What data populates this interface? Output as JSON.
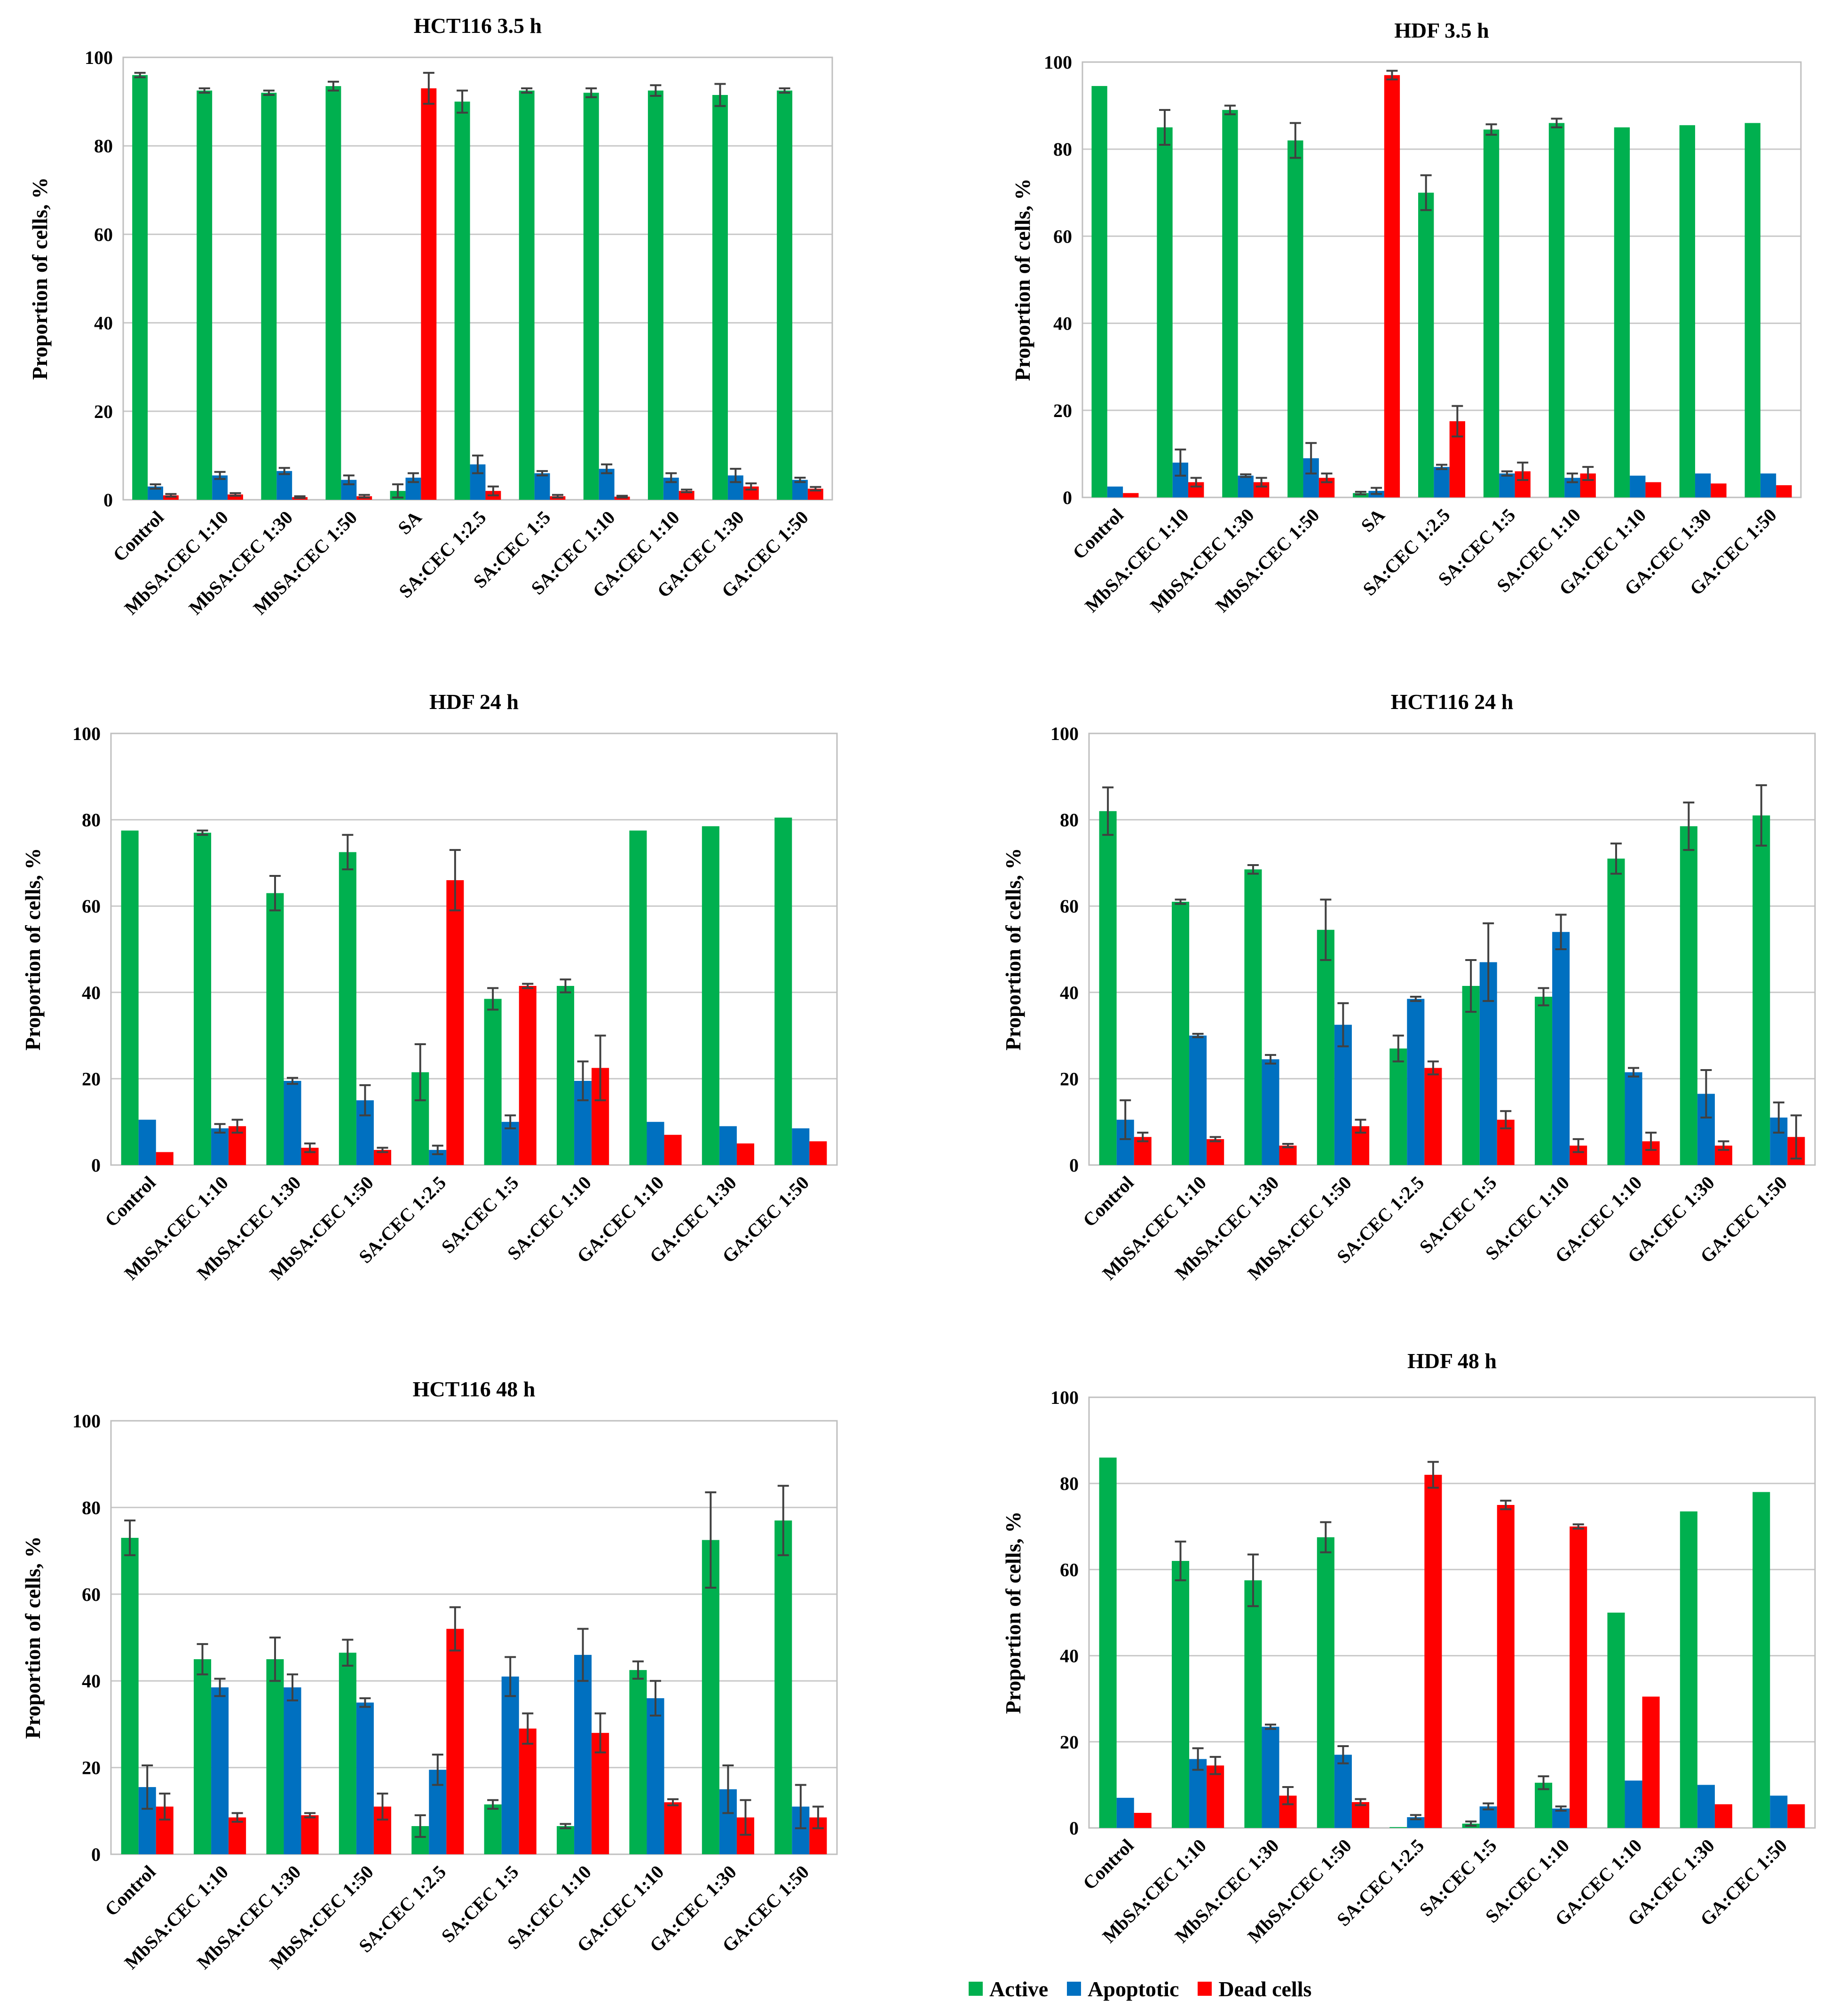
{
  "figure": {
    "ylabel": "Proportion of cells, %",
    "yticks": [
      0,
      20,
      40,
      60,
      80,
      100
    ]
  },
  "series_colors": {
    "active": "#00b04f",
    "apoptotic": "#0070c0",
    "dead": "#ff0000"
  },
  "legend": {
    "active": "Active",
    "apoptotic": "Apoptotic",
    "dead": "Dead cells"
  },
  "chart_data": [
    {
      "id": "hct116_3_5h",
      "type": "bar",
      "title": "HCT116  3.5 h",
      "ylabel": "Proportion of cells, %",
      "ylim": [
        0,
        100
      ],
      "categories": [
        "Control",
        "MbSA:CEC 1:10",
        "MbSA:CEC 1:30",
        "MbSA:CEC 1:50",
        "SA",
        "SA:CEC 1:2.5",
        "SA:CEC 1:5",
        "SA:CEC 1:10",
        "GA:CEC 1:10",
        "GA:CEC 1:30",
        "GA:CEC 1:50"
      ],
      "series": [
        {
          "name": "Active",
          "values": [
            96,
            92.5,
            92,
            93.5,
            2,
            90,
            92.5,
            92,
            92.5,
            91.5,
            92.5
          ],
          "errors": [
            0.5,
            0.5,
            0.5,
            1,
            1.5,
            2.5,
            0.5,
            1,
            1.2,
            2.5,
            0.5
          ]
        },
        {
          "name": "Apoptotic",
          "values": [
            3,
            5.5,
            6.5,
            4.5,
            5,
            8,
            6,
            7,
            5,
            5.5,
            4.5
          ],
          "errors": [
            0.5,
            0.8,
            0.7,
            1,
            1,
            2,
            0.5,
            1,
            1,
            1.5,
            0.5
          ]
        },
        {
          "name": "Dead cells",
          "values": [
            1,
            1.2,
            0.6,
            0.8,
            93,
            2,
            0.8,
            0.7,
            2,
            3,
            2.5
          ],
          "errors": [
            0.3,
            0.3,
            0.2,
            0.3,
            3.5,
            1,
            0.3,
            0.2,
            0.3,
            0.7,
            0.4
          ]
        }
      ]
    },
    {
      "id": "hdf_3_5h",
      "type": "bar",
      "title": "HDF  3.5 h",
      "ylabel": "Proportion of cells, %",
      "ylim": [
        0,
        100
      ],
      "categories": [
        "Control",
        "MbSA:CEC 1:10",
        "MbSA:CEC 1:30",
        "MbSA:CEC 1:50",
        "SA",
        "SA:CEC 1:2.5",
        "SA:CEC 1:5",
        "SA:CEC 1:10",
        "GA:CEC 1:10",
        "GA:CEC 1:30",
        "GA:CEC 1:50"
      ],
      "series": [
        {
          "name": "Active",
          "values": [
            94.5,
            85,
            89,
            82,
            1,
            70,
            84.5,
            86,
            85,
            85.5,
            86
          ],
          "errors": [
            0,
            4,
            1,
            4,
            0.3,
            4,
            1.2,
            1,
            0,
            0,
            0
          ]
        },
        {
          "name": "Apoptotic",
          "values": [
            2.5,
            8,
            5,
            9,
            1.5,
            7,
            5.5,
            4.5,
            5,
            5.5,
            5.5
          ],
          "errors": [
            0,
            3,
            0.3,
            3.5,
            0.7,
            0.5,
            0.5,
            1,
            0,
            0,
            0
          ]
        },
        {
          "name": "Dead cells",
          "values": [
            1,
            3.5,
            3.5,
            4.5,
            97,
            17.5,
            6,
            5.5,
            3.5,
            3.2,
            2.8
          ],
          "errors": [
            0,
            1,
            1,
            1,
            1,
            3.5,
            2,
            1.5,
            0,
            0,
            0
          ]
        }
      ]
    },
    {
      "id": "hdf_24h",
      "type": "bar",
      "title": "HDF  24 h",
      "ylabel": "Proportion of cells, %",
      "ylim": [
        0,
        100
      ],
      "categories": [
        "Control",
        "MbSA:CEC 1:10",
        "MbSA:CEC 1:30",
        "MbSA:CEC 1:50",
        "SA:CEC 1:2.5",
        "SA:CEC 1:5",
        "SA:CEC 1:10",
        "GA:CEC 1:10",
        "GA:CEC 1:30",
        "GA:CEC 1:50"
      ],
      "series": [
        {
          "name": "Active",
          "values": [
            77.5,
            77,
            63,
            72.5,
            21.5,
            38.5,
            41.5,
            77.5,
            78.5,
            80.5
          ],
          "errors": [
            0,
            0.5,
            4,
            4,
            6.5,
            2.5,
            1.5,
            0,
            0,
            0
          ]
        },
        {
          "name": "Apoptotic",
          "values": [
            10.5,
            8.5,
            19.5,
            15,
            3.5,
            10,
            19.5,
            10,
            9,
            8.5
          ],
          "errors": [
            0,
            1,
            0.7,
            3.5,
            1,
            1.5,
            4.5,
            0,
            0,
            0
          ]
        },
        {
          "name": "Dead cells",
          "values": [
            3,
            9,
            4,
            3.5,
            66,
            41.5,
            22.5,
            7,
            5,
            5.5
          ],
          "errors": [
            0,
            1.5,
            1,
            0.5,
            7,
            0.5,
            7.5,
            0,
            0,
            0
          ]
        }
      ]
    },
    {
      "id": "hct116_24h",
      "type": "bar",
      "title": "HCT116  24 h",
      "ylabel": "Proportion of cells, %",
      "ylim": [
        0,
        100
      ],
      "categories": [
        "Control",
        "MbSA:CEC 1:10",
        "MbSA:CEC 1:30",
        "MbSA:CEC 1:50",
        "SA:CEC 1:2.5",
        "SA:CEC 1:5",
        "SA:CEC 1:10",
        "GA:CEC 1:10",
        "GA:CEC 1:30",
        "GA:CEC 1:50"
      ],
      "series": [
        {
          "name": "Active",
          "values": [
            82,
            61,
            68.5,
            54.5,
            27,
            41.5,
            39,
            71,
            78.5,
            81
          ],
          "errors": [
            5.5,
            0.5,
            1,
            7,
            3,
            6,
            2,
            3.5,
            5.5,
            7
          ]
        },
        {
          "name": "Apoptotic",
          "values": [
            10.5,
            30,
            24.5,
            32.5,
            38.5,
            47,
            54,
            21.5,
            16.5,
            11
          ],
          "errors": [
            4.5,
            0.4,
            1,
            5,
            0.5,
            9,
            4,
            1,
            5.5,
            3.5
          ]
        },
        {
          "name": "Dead cells",
          "values": [
            6.5,
            6,
            4.5,
            9,
            22.5,
            10.5,
            4.5,
            5.5,
            4.5,
            6.5
          ],
          "errors": [
            1,
            0.5,
            0.4,
            1.5,
            1.5,
            2,
            1.5,
            2,
            1,
            5
          ]
        }
      ]
    },
    {
      "id": "hct116_48h",
      "type": "bar",
      "title": "HCT116  48 h",
      "ylabel": "Proportion of cells, %",
      "ylim": [
        0,
        100
      ],
      "categories": [
        "Control",
        "MbSA:CEC 1:10",
        "MbSA:CEC 1:30",
        "MbSA:CEC 1:50",
        "SA:CEC 1:2.5",
        "SA:CEC 1:5",
        "SA:CEC 1:10",
        "GA:CEC 1:10",
        "GA:CEC 1:30",
        "GA:CEC 1:50"
      ],
      "series": [
        {
          "name": "Active",
          "values": [
            73,
            45,
            45,
            46.5,
            6.5,
            11.5,
            6.5,
            42.5,
            72.5,
            77
          ],
          "errors": [
            4,
            3.5,
            5,
            3,
            2.5,
            1,
            0.5,
            2,
            11,
            8
          ]
        },
        {
          "name": "Apoptotic",
          "values": [
            15.5,
            38.5,
            38.5,
            35,
            19.5,
            41,
            46,
            36,
            15,
            11
          ],
          "errors": [
            5,
            2,
            3,
            1,
            3.5,
            4.5,
            6,
            4,
            5.5,
            5
          ]
        },
        {
          "name": "Dead cells",
          "values": [
            11,
            8.5,
            9,
            11,
            52,
            29,
            28,
            12,
            8.5,
            8.5
          ],
          "errors": [
            3,
            1,
            0.5,
            3,
            5,
            3.5,
            4.5,
            0.7,
            4,
            2.5
          ]
        }
      ]
    },
    {
      "id": "hdf_48h",
      "type": "bar",
      "title": "HDF  48 h",
      "ylabel": "Proportion of cells, %",
      "ylim": [
        0,
        100
      ],
      "categories": [
        "Control",
        "MbSA:CEC 1:10",
        "MbSA:CEC 1:30",
        "MbSA:CEC 1:50",
        "SA:CEC 1:2.5",
        "SA:CEC 1:5",
        "SA:CEC 1:10",
        "GA:CEC 1:10",
        "GA:CEC 1:30",
        "GA:CEC 1:50"
      ],
      "series": [
        {
          "name": "Active",
          "values": [
            86,
            62,
            57.5,
            67.5,
            0.2,
            1,
            10.5,
            50,
            73.5,
            78
          ],
          "errors": [
            0,
            4.5,
            6,
            3.5,
            0,
            0.5,
            1.5,
            0,
            0,
            0
          ]
        },
        {
          "name": "Apoptotic",
          "values": [
            7,
            16,
            23.5,
            17,
            2.5,
            5,
            4.5,
            11,
            10,
            7.5
          ],
          "errors": [
            0,
            2.5,
            0.5,
            2,
            0.5,
            0.7,
            0.5,
            0,
            0,
            0
          ]
        },
        {
          "name": "Dead cells",
          "values": [
            3.5,
            14.5,
            7.5,
            6,
            82,
            75,
            70,
            30.5,
            5.5,
            5.5
          ],
          "errors": [
            0,
            2,
            2,
            0.7,
            3,
            1,
            0.5,
            0,
            0,
            0
          ]
        }
      ]
    }
  ]
}
